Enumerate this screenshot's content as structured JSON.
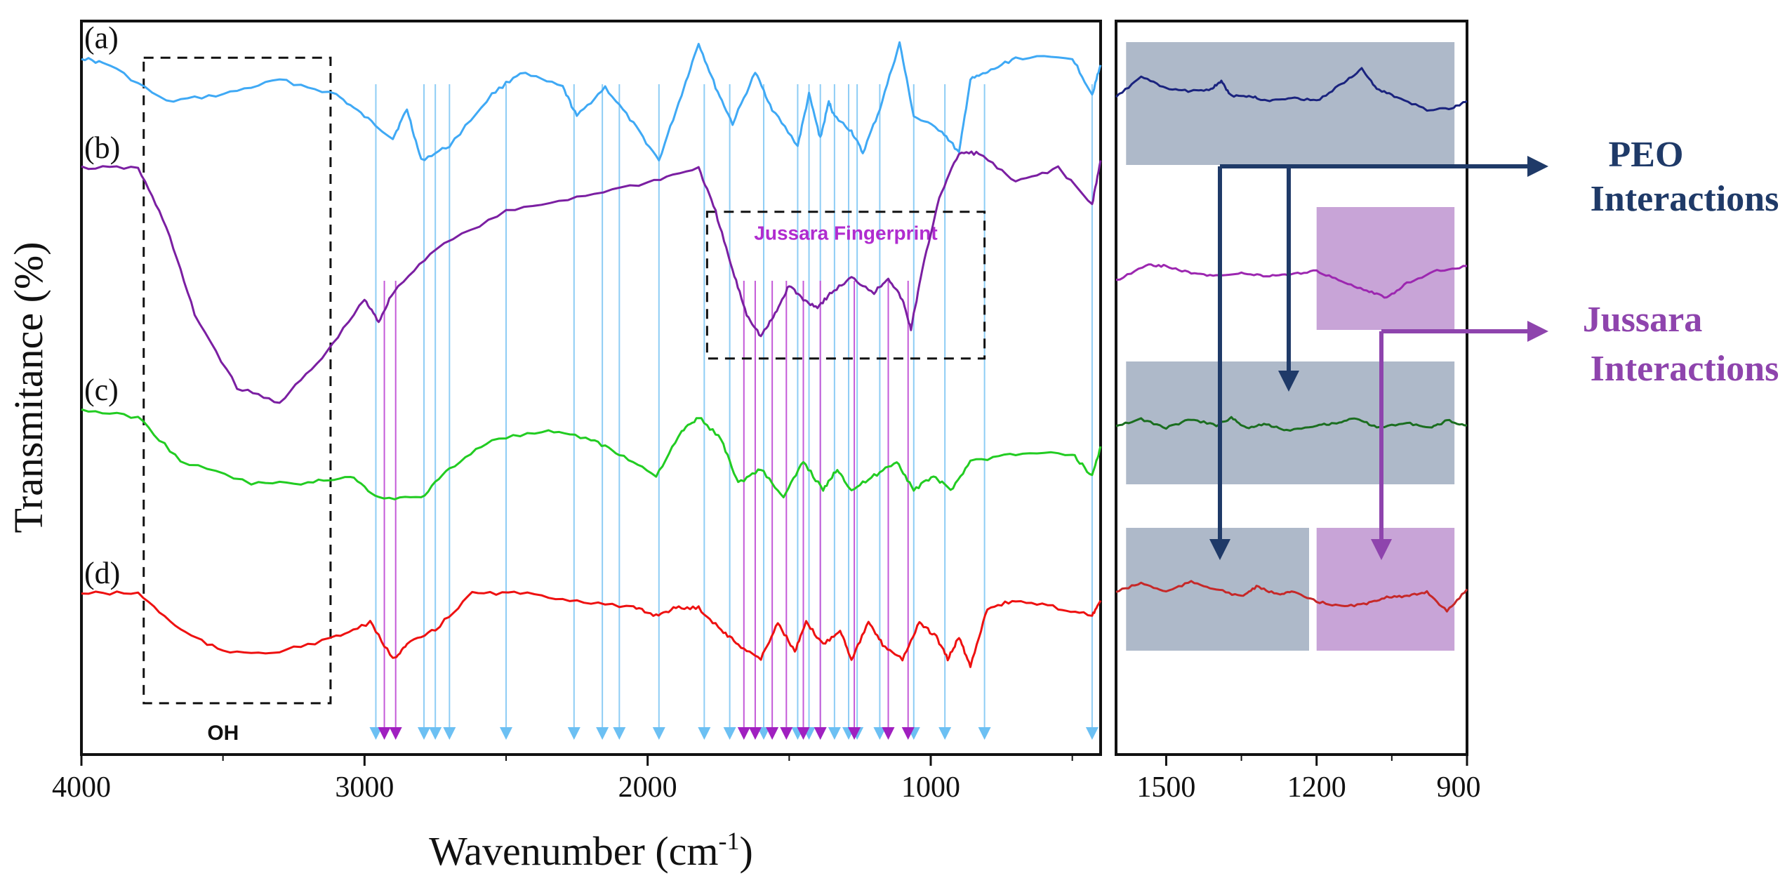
{
  "chart_data": [
    {
      "type": "line",
      "panel": "main",
      "xlabel": "Wavenumber (cm",
      "xlabel_sup": "-1",
      "xlabel_close": ")",
      "ylabel": "Transmitance (%)",
      "xlim": [
        4000,
        400
      ],
      "x_ticks": [
        4000,
        3000,
        2000,
        1000
      ],
      "x_tick_labels": [
        "4000",
        "3000",
        "2000",
        "1000"
      ],
      "series": [
        {
          "name": "(a)",
          "color": "#3fa9f5",
          "baseline": 0.11,
          "points": [
            [
              4000,
              0.05
            ],
            [
              3900,
              0.06
            ],
            [
              3700,
              0.11
            ],
            [
              3500,
              0.1
            ],
            [
              3300,
              0.08
            ],
            [
              3100,
              0.1
            ],
            [
              3000,
              0.13
            ],
            [
              2900,
              0.16
            ],
            [
              2850,
              0.12
            ],
            [
              2800,
              0.19
            ],
            [
              2700,
              0.17
            ],
            [
              2550,
              0.1
            ],
            [
              2450,
              0.07
            ],
            [
              2300,
              0.09
            ],
            [
              2250,
              0.13
            ],
            [
              2150,
              0.09
            ],
            [
              2050,
              0.14
            ],
            [
              1960,
              0.19
            ],
            [
              1880,
              0.1
            ],
            [
              1820,
              0.03
            ],
            [
              1760,
              0.09
            ],
            [
              1700,
              0.14
            ],
            [
              1620,
              0.07
            ],
            [
              1560,
              0.12
            ],
            [
              1470,
              0.17
            ],
            [
              1430,
              0.1
            ],
            [
              1390,
              0.16
            ],
            [
              1360,
              0.11
            ],
            [
              1340,
              0.13
            ],
            [
              1280,
              0.15
            ],
            [
              1240,
              0.18
            ],
            [
              1180,
              0.12
            ],
            [
              1110,
              0.03
            ],
            [
              1060,
              0.13
            ],
            [
              960,
              0.15
            ],
            [
              900,
              0.18
            ],
            [
              860,
              0.08
            ],
            [
              800,
              0.07
            ],
            [
              700,
              0.05
            ],
            [
              500,
              0.05
            ],
            [
              430,
              0.1
            ],
            [
              400,
              0.06
            ]
          ]
        },
        {
          "name": "(b)",
          "color": "#7b1fa2",
          "baseline": 0.28,
          "points": [
            [
              4000,
              0.2
            ],
            [
              3800,
              0.2
            ],
            [
              3700,
              0.28
            ],
            [
              3600,
              0.4
            ],
            [
              3450,
              0.5
            ],
            [
              3300,
              0.52
            ],
            [
              3150,
              0.46
            ],
            [
              3000,
              0.38
            ],
            [
              2950,
              0.41
            ],
            [
              2900,
              0.37
            ],
            [
              2750,
              0.31
            ],
            [
              2500,
              0.26
            ],
            [
              2250,
              0.24
            ],
            [
              2000,
              0.22
            ],
            [
              1820,
              0.2
            ],
            [
              1760,
              0.26
            ],
            [
              1700,
              0.34
            ],
            [
              1650,
              0.4
            ],
            [
              1600,
              0.43
            ],
            [
              1550,
              0.4
            ],
            [
              1500,
              0.36
            ],
            [
              1450,
              0.38
            ],
            [
              1400,
              0.39
            ],
            [
              1350,
              0.37
            ],
            [
              1280,
              0.35
            ],
            [
              1200,
              0.37
            ],
            [
              1150,
              0.35
            ],
            [
              1100,
              0.38
            ],
            [
              1070,
              0.42
            ],
            [
              1030,
              0.34
            ],
            [
              970,
              0.24
            ],
            [
              900,
              0.18
            ],
            [
              830,
              0.18
            ],
            [
              700,
              0.22
            ],
            [
              550,
              0.2
            ],
            [
              430,
              0.25
            ],
            [
              400,
              0.19
            ]
          ]
        },
        {
          "name": "(c)",
          "color": "#22cc22",
          "baseline": 0.58,
          "points": [
            [
              4000,
              0.53
            ],
            [
              3800,
              0.54
            ],
            [
              3650,
              0.6
            ],
            [
              3400,
              0.63
            ],
            [
              3200,
              0.63
            ],
            [
              3050,
              0.62
            ],
            [
              2950,
              0.65
            ],
            [
              2800,
              0.65
            ],
            [
              2700,
              0.61
            ],
            [
              2550,
              0.57
            ],
            [
              2350,
              0.56
            ],
            [
              2200,
              0.57
            ],
            [
              2100,
              0.59
            ],
            [
              1970,
              0.62
            ],
            [
              1880,
              0.56
            ],
            [
              1820,
              0.54
            ],
            [
              1740,
              0.57
            ],
            [
              1680,
              0.63
            ],
            [
              1600,
              0.61
            ],
            [
              1520,
              0.65
            ],
            [
              1450,
              0.6
            ],
            [
              1380,
              0.64
            ],
            [
              1330,
              0.61
            ],
            [
              1280,
              0.64
            ],
            [
              1200,
              0.62
            ],
            [
              1120,
              0.6
            ],
            [
              1060,
              0.64
            ],
            [
              990,
              0.62
            ],
            [
              930,
              0.64
            ],
            [
              860,
              0.6
            ],
            [
              700,
              0.59
            ],
            [
              500,
              0.59
            ],
            [
              430,
              0.62
            ],
            [
              400,
              0.58
            ]
          ]
        },
        {
          "name": "(d)",
          "color": "#ee1111",
          "baseline": 0.8,
          "points": [
            [
              4000,
              0.78
            ],
            [
              3800,
              0.78
            ],
            [
              3650,
              0.83
            ],
            [
              3500,
              0.86
            ],
            [
              3300,
              0.86
            ],
            [
              3100,
              0.84
            ],
            [
              2980,
              0.82
            ],
            [
              2900,
              0.87
            ],
            [
              2850,
              0.85
            ],
            [
              2750,
              0.83
            ],
            [
              2620,
              0.78
            ],
            [
              2450,
              0.78
            ],
            [
              2250,
              0.79
            ],
            [
              2050,
              0.8
            ],
            [
              1970,
              0.81
            ],
            [
              1900,
              0.8
            ],
            [
              1820,
              0.8
            ],
            [
              1740,
              0.83
            ],
            [
              1680,
              0.85
            ],
            [
              1600,
              0.87
            ],
            [
              1540,
              0.82
            ],
            [
              1480,
              0.86
            ],
            [
              1440,
              0.82
            ],
            [
              1380,
              0.85
            ],
            [
              1320,
              0.83
            ],
            [
              1280,
              0.87
            ],
            [
              1220,
              0.82
            ],
            [
              1170,
              0.85
            ],
            [
              1100,
              0.87
            ],
            [
              1040,
              0.82
            ],
            [
              980,
              0.84
            ],
            [
              940,
              0.87
            ],
            [
              900,
              0.84
            ],
            [
              860,
              0.88
            ],
            [
              800,
              0.8
            ],
            [
              700,
              0.79
            ],
            [
              550,
              0.8
            ],
            [
              430,
              0.81
            ],
            [
              400,
              0.79
            ]
          ]
        }
      ],
      "annotations": [
        {
          "label": "OH",
          "x_range": [
            3780,
            3120
          ],
          "y_range": [
            0.05,
            0.93
          ]
        },
        {
          "label": "Jussara Fingerprint",
          "x_range": [
            1790,
            810
          ],
          "y_range": [
            0.26,
            0.46
          ]
        }
      ],
      "reference_lines_blue": [
        2960,
        2790,
        2750,
        2700,
        2500,
        2260,
        2160,
        2100,
        1960,
        1800,
        1710,
        1590,
        1470,
        1430,
        1390,
        1340,
        1290,
        1260,
        1180,
        1060,
        950,
        810,
        430
      ],
      "reference_lines_purple": [
        2930,
        2890,
        1660,
        1620,
        1560,
        1510,
        1450,
        1390,
        1270,
        1150,
        1080
      ]
    },
    {
      "type": "line",
      "panel": "inset",
      "xlim": [
        1600,
        900
      ],
      "x_ticks": [
        1500,
        1200,
        900
      ],
      "x_tick_labels": [
        "1500",
        "1200",
        "900"
      ],
      "series": [
        {
          "name": "(a) inset",
          "color": "#1a237e",
          "points": [
            [
              1600,
              0.45
            ],
            [
              1550,
              0.28
            ],
            [
              1500,
              0.38
            ],
            [
              1450,
              0.4
            ],
            [
              1410,
              0.38
            ],
            [
              1390,
              0.32
            ],
            [
              1370,
              0.44
            ],
            [
              1330,
              0.44
            ],
            [
              1300,
              0.48
            ],
            [
              1250,
              0.45
            ],
            [
              1200,
              0.48
            ],
            [
              1150,
              0.34
            ],
            [
              1110,
              0.22
            ],
            [
              1080,
              0.38
            ],
            [
              1040,
              0.45
            ],
            [
              980,
              0.55
            ],
            [
              930,
              0.54
            ],
            [
              900,
              0.48
            ]
          ]
        },
        {
          "name": "(b) inset",
          "color": "#9c27b0",
          "points": [
            [
              1600,
              0.6
            ],
            [
              1540,
              0.47
            ],
            [
              1500,
              0.48
            ],
            [
              1450,
              0.54
            ],
            [
              1400,
              0.56
            ],
            [
              1350,
              0.54
            ],
            [
              1300,
              0.56
            ],
            [
              1250,
              0.55
            ],
            [
              1200,
              0.52
            ],
            [
              1150,
              0.6
            ],
            [
              1100,
              0.68
            ],
            [
              1060,
              0.74
            ],
            [
              1020,
              0.62
            ],
            [
              960,
              0.52
            ],
            [
              900,
              0.48
            ]
          ]
        },
        {
          "name": "(c) inset",
          "color": "#1b6e20",
          "points": [
            [
              1600,
              0.52
            ],
            [
              1550,
              0.47
            ],
            [
              1500,
              0.54
            ],
            [
              1450,
              0.47
            ],
            [
              1400,
              0.52
            ],
            [
              1370,
              0.46
            ],
            [
              1340,
              0.54
            ],
            [
              1300,
              0.51
            ],
            [
              1260,
              0.56
            ],
            [
              1200,
              0.52
            ],
            [
              1160,
              0.5
            ],
            [
              1120,
              0.46
            ],
            [
              1080,
              0.54
            ],
            [
              1020,
              0.5
            ],
            [
              970,
              0.54
            ],
            [
              940,
              0.48
            ],
            [
              900,
              0.52
            ]
          ]
        },
        {
          "name": "(d) inset",
          "color": "#c62828",
          "points": [
            [
              1600,
              0.52
            ],
            [
              1550,
              0.45
            ],
            [
              1500,
              0.52
            ],
            [
              1450,
              0.44
            ],
            [
              1400,
              0.5
            ],
            [
              1350,
              0.56
            ],
            [
              1320,
              0.48
            ],
            [
              1280,
              0.54
            ],
            [
              1250,
              0.52
            ],
            [
              1200,
              0.6
            ],
            [
              1150,
              0.64
            ],
            [
              1100,
              0.62
            ],
            [
              1060,
              0.56
            ],
            [
              1020,
              0.56
            ],
            [
              980,
              0.52
            ],
            [
              940,
              0.68
            ],
            [
              900,
              0.5
            ]
          ]
        }
      ],
      "highlight_boxes": [
        {
          "color": "#6b7f9c",
          "opacity": 0.55,
          "x_range": [
            1580,
            925
          ],
          "row": 0
        },
        {
          "color": "#9b59b6",
          "opacity": 0.55,
          "x_range": [
            1200,
            925
          ],
          "row": 1
        },
        {
          "color": "#6b7f9c",
          "opacity": 0.55,
          "x_range": [
            1580,
            925
          ],
          "row": 2
        },
        {
          "color": "#6b7f9c",
          "opacity": 0.55,
          "x_range": [
            1580,
            1215
          ],
          "row": 3
        },
        {
          "color": "#9b59b6",
          "opacity": 0.55,
          "x_range": [
            1200,
            925
          ],
          "row": 3
        }
      ],
      "callouts": [
        {
          "label_line1": "PEO",
          "label_line2": "Interactions",
          "color": "#1f3a68"
        },
        {
          "label_line1": "Jussara",
          "label_line2": "Interactions",
          "color": "#8e44ad"
        }
      ]
    }
  ]
}
